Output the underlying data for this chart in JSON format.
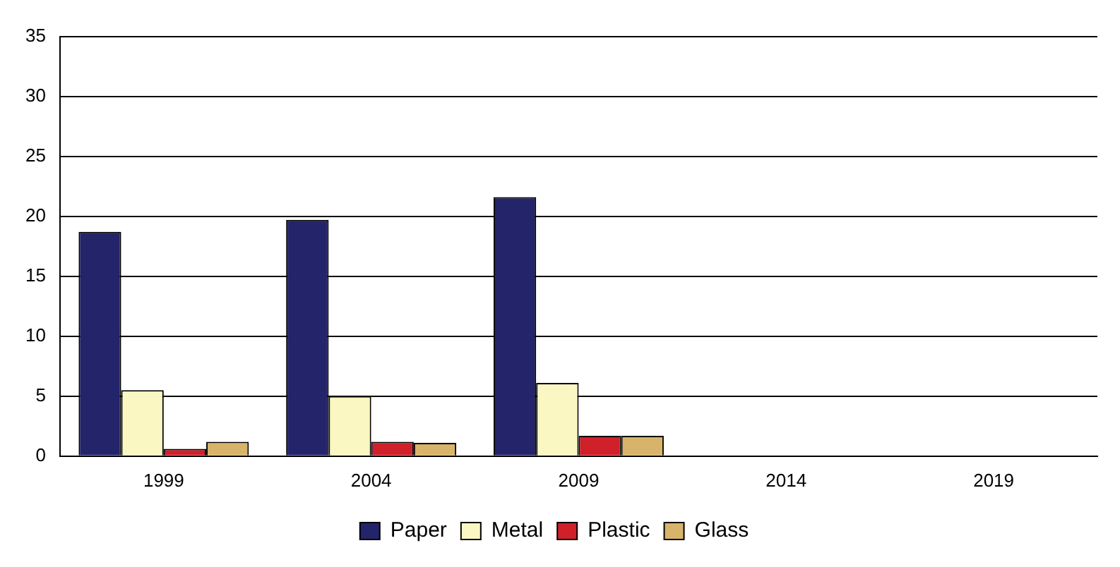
{
  "chart_data": {
    "type": "bar",
    "categories": [
      "1999",
      "2004",
      "2009",
      "2014",
      "2019"
    ],
    "series": [
      {
        "name": "Paper",
        "color": "#24246a",
        "values": [
          18.7,
          19.7,
          21.6,
          null,
          null
        ]
      },
      {
        "name": "Metal",
        "color": "#fbf7c3",
        "values": [
          5.5,
          5.0,
          6.1,
          null,
          null
        ]
      },
      {
        "name": "Plastic",
        "color": "#d0202a",
        "values": [
          0.6,
          1.2,
          1.7,
          null,
          null
        ]
      },
      {
        "name": "Glass",
        "color": "#d8b46a",
        "values": [
          1.2,
          1.1,
          1.7,
          null,
          null
        ]
      }
    ],
    "ylim": [
      0,
      35
    ],
    "yticks": [
      0,
      5,
      10,
      15,
      20,
      25,
      30,
      35
    ],
    "grid": "y",
    "legend": "bottom"
  }
}
